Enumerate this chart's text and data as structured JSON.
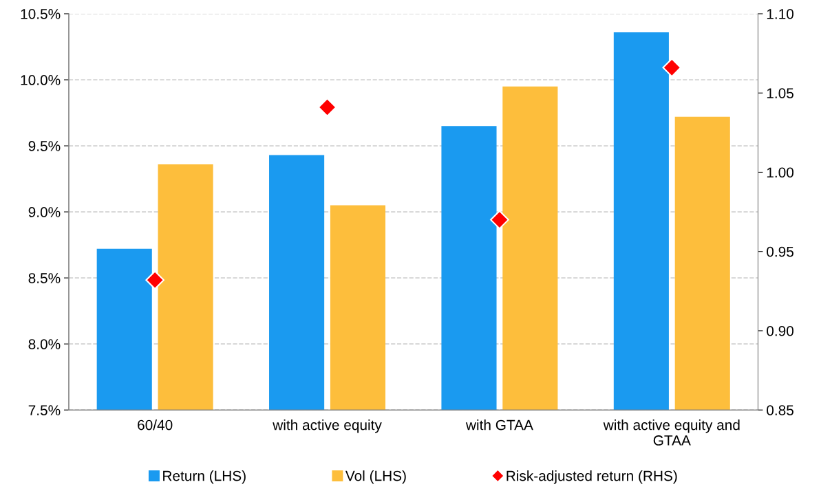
{
  "chart_data": {
    "type": "bar",
    "categories": [
      "60/40",
      "with active equity",
      "with GTAA",
      "with active equity and\nGTAA"
    ],
    "series": [
      {
        "name": "Return (LHS)",
        "color": "#1a9af0",
        "values": [
          8.72,
          9.43,
          9.65,
          10.36
        ]
      },
      {
        "name": "Vol (LHS)",
        "color": "#fdbe3c",
        "values": [
          9.36,
          9.05,
          9.95,
          9.72
        ]
      },
      {
        "name": "Risk-adjusted return (RHS)",
        "type": "scatter",
        "axis": "y2",
        "color": "#ff0000",
        "marker": "diamond",
        "values": [
          0.932,
          1.041,
          0.97,
          1.066
        ]
      }
    ],
    "ylim": [
      7.5,
      10.5
    ],
    "yticks": [
      {
        "value": 7.5,
        "label": "7.5%"
      },
      {
        "value": 8.0,
        "label": "8.0%"
      },
      {
        "value": 8.5,
        "label": "8.5%"
      },
      {
        "value": 9.0,
        "label": "9.0%"
      },
      {
        "value": 9.5,
        "label": "9.5%"
      },
      {
        "value": 10.0,
        "label": "10.0%"
      },
      {
        "value": 10.5,
        "label": "10.5%"
      }
    ],
    "y2lim": [
      0.85,
      1.1
    ],
    "y2ticks": [
      {
        "value": 0.85,
        "label": "0.85"
      },
      {
        "value": 0.9,
        "label": "0.90"
      },
      {
        "value": 0.95,
        "label": "0.95"
      },
      {
        "value": 1.0,
        "label": "1.00"
      },
      {
        "value": 1.05,
        "label": "1.05"
      },
      {
        "value": 1.1,
        "label": "1.10"
      }
    ],
    "grid": "y",
    "line_style": "dashed",
    "legend": "bottom"
  }
}
